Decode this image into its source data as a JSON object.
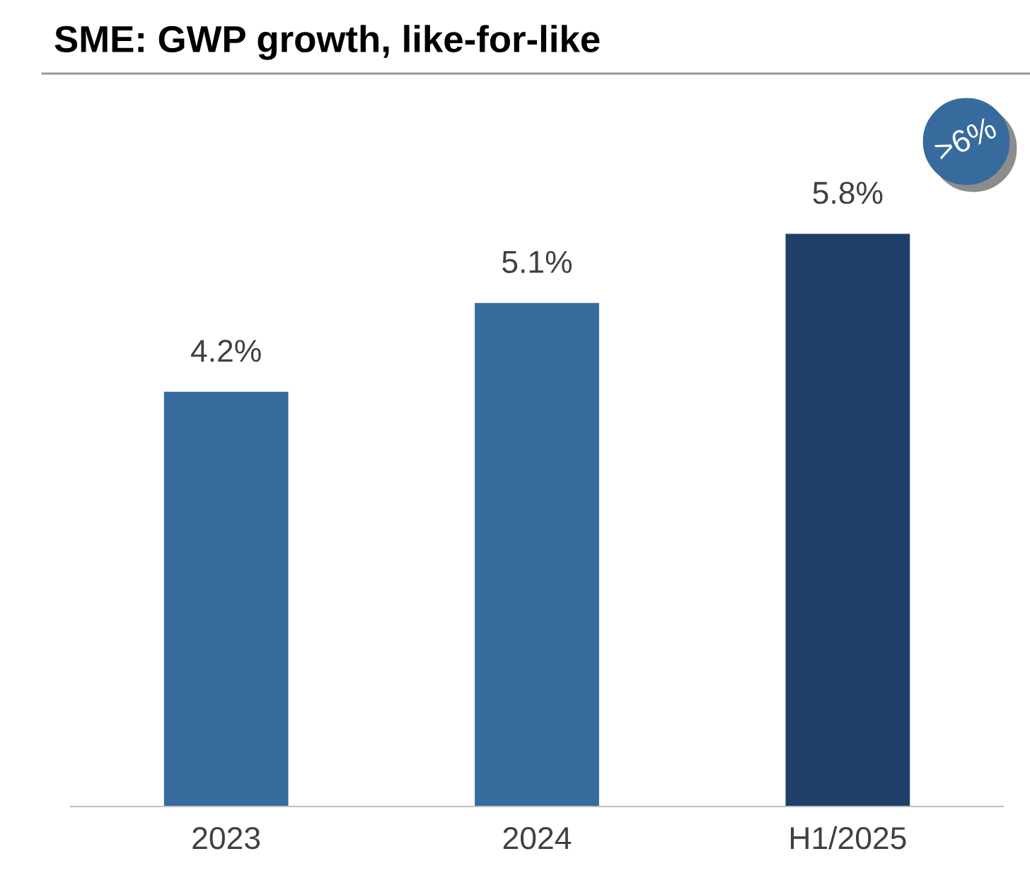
{
  "chart_data": {
    "type": "bar",
    "title": "SME: GWP growth, like-for-like",
    "categories": [
      "2023",
      "2024",
      "H1/2025"
    ],
    "values": [
      4.2,
      5.1,
      5.8
    ],
    "colors": [
      "#386b9d",
      "#386b9d",
      "#1f3f68"
    ],
    "value_labels": [
      "4.2%",
      "5.1%",
      "5.8%"
    ],
    "annotations": [
      ">6%"
    ]
  }
}
